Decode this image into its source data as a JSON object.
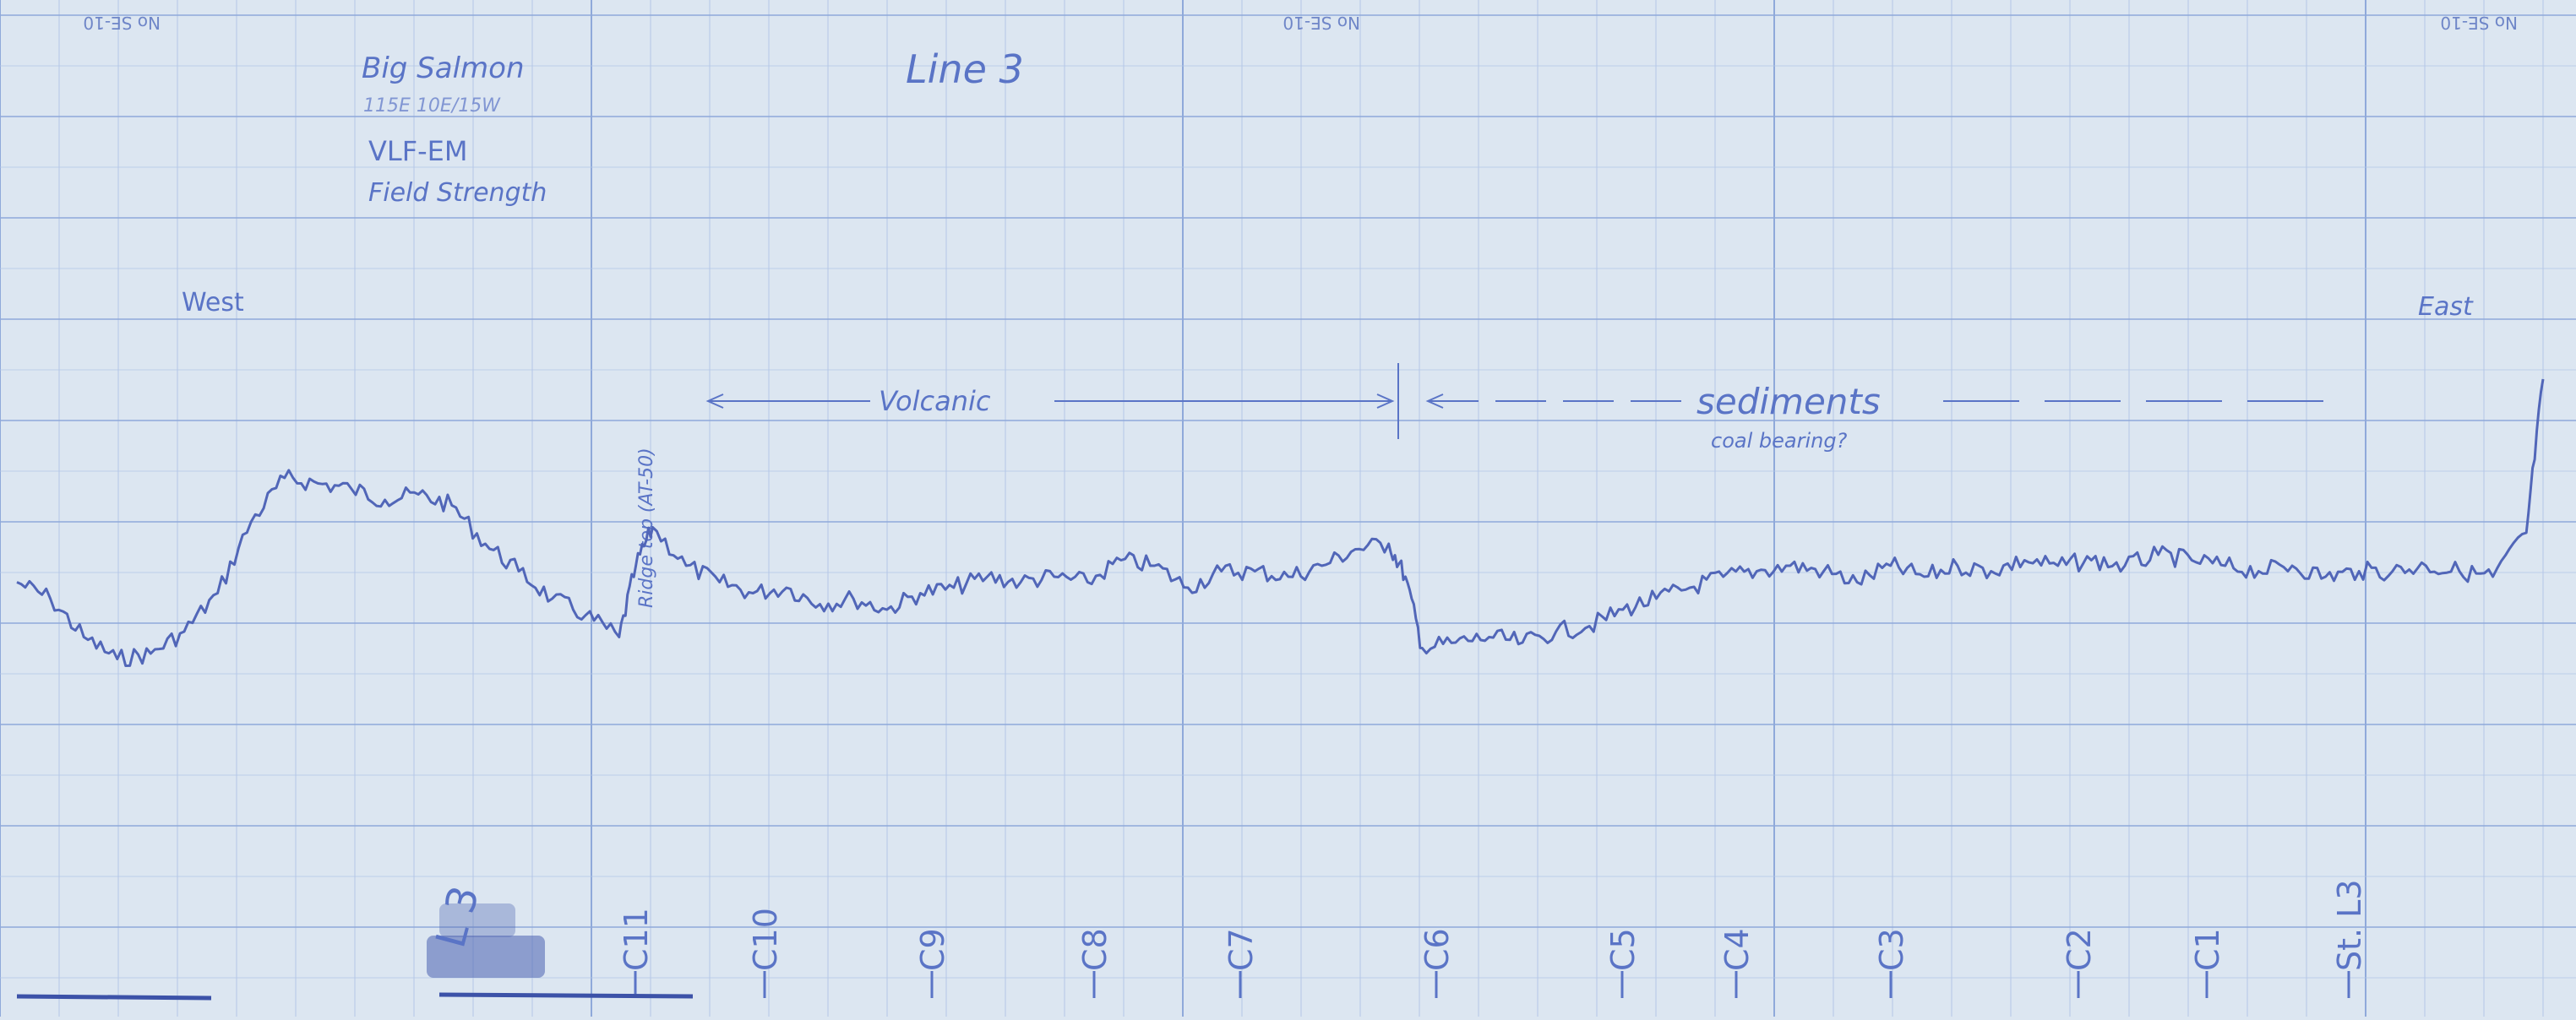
{
  "chart_data": {
    "type": "line",
    "title": "Line 3",
    "header_notes": [
      "Big Salmon",
      "115E 10E/15W"
    ],
    "subtitle": [
      "VLF-EM",
      "Field Strength"
    ],
    "paper_header_code": "No SE-10",
    "direction_left": "West",
    "direction_right": "East",
    "ridge_annotation": "Ridge top (AT-50)",
    "zone_volcanic": "Volcanic",
    "zone_sediments": "sediments",
    "zone_sediments_note": "coal bearing?",
    "margin_mark": "L 3",
    "station_labels": [
      "C11",
      "C10",
      "C9",
      "C8",
      "C7",
      "C6",
      "C5",
      "C4",
      "C3",
      "C2",
      "C1",
      "St. L3"
    ],
    "grid": true,
    "colors": {
      "paper": "#dce6f1",
      "grid_major": "#8fa9da",
      "grid_minor": "#b3c6e6",
      "trace": "#5166b8",
      "ink": "#5a74c6"
    },
    "x": [
      0,
      40,
      80,
      120,
      160,
      200,
      240,
      280,
      320,
      360,
      400,
      440,
      480,
      520,
      560,
      600,
      640,
      680,
      720,
      740,
      760,
      800,
      840,
      880,
      920,
      960,
      1000,
      1040,
      1080,
      1120,
      1160,
      1200,
      1240,
      1280,
      1320,
      1360,
      1400,
      1440,
      1480,
      1520,
      1560,
      1600,
      1640,
      1660,
      1680,
      1720,
      1760,
      1800,
      1840,
      1880,
      1920,
      1960,
      2000,
      2040,
      2080,
      2120,
      2160,
      2200,
      2240,
      2280,
      2320,
      2360,
      2400,
      2440,
      2480,
      2520,
      2560,
      2600,
      2640,
      2680,
      2720,
      2760,
      2800,
      2840,
      2880,
      2920,
      2960,
      3000,
      3020
    ],
    "series": [
      {
        "values": [
          37,
          34,
          27,
          23,
          24,
          28,
          35,
          48,
          56,
          55,
          54,
          52,
          53,
          51,
          44,
          39,
          34,
          31,
          27,
          40,
          47,
          40,
          37,
          35,
          36,
          33,
          34,
          32,
          35,
          36,
          38,
          37,
          38,
          37,
          41,
          40,
          36,
          39,
          39,
          38,
          40,
          43,
          44,
          38,
          25,
          26,
          27,
          26,
          28,
          29,
          32,
          34,
          36,
          38,
          39,
          40,
          39,
          37,
          40,
          38,
          40,
          39,
          41,
          40,
          41,
          40,
          42,
          41,
          40,
          39,
          40,
          38,
          39,
          39,
          40,
          39,
          38,
          46,
          74
        ]
      }
    ]
  }
}
